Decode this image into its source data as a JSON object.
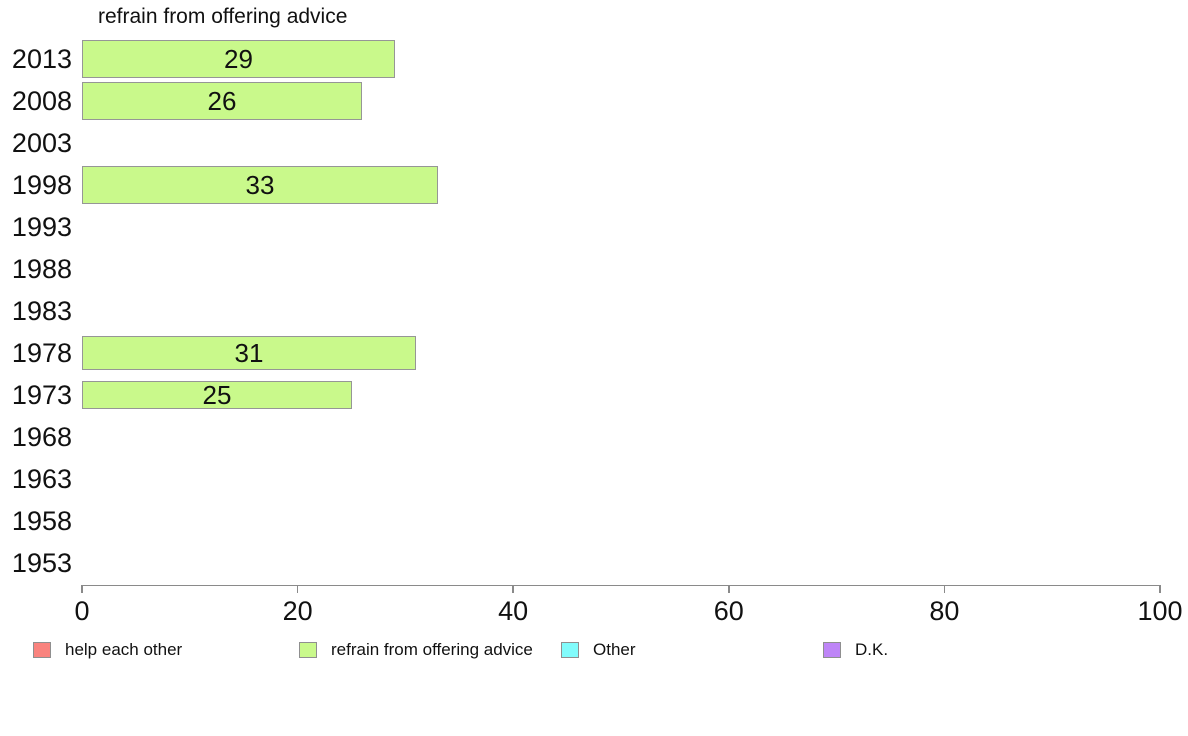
{
  "chart_data": {
    "type": "bar",
    "orientation": "horizontal",
    "title": "refrain from offering advice",
    "categories": [
      "2013",
      "2008",
      "2003",
      "1998",
      "1993",
      "1988",
      "1983",
      "1978",
      "1973",
      "1968",
      "1963",
      "1958",
      "1953"
    ],
    "series": [
      {
        "name": "help each other",
        "color": "#F9837E",
        "values": [
          null,
          null,
          null,
          null,
          null,
          null,
          null,
          null,
          null,
          null,
          null,
          null,
          null
        ]
      },
      {
        "name": "refrain from offering advice",
        "color": "#C9F98B",
        "values": [
          29,
          26,
          null,
          33,
          null,
          null,
          null,
          31,
          25,
          null,
          null,
          null,
          null
        ]
      },
      {
        "name": "Other",
        "color": "#81FCFC",
        "values": [
          null,
          null,
          null,
          null,
          null,
          null,
          null,
          null,
          null,
          null,
          null,
          null,
          null
        ]
      },
      {
        "name": "D.K.",
        "color": "#BE85F7",
        "values": [
          null,
          null,
          null,
          null,
          null,
          null,
          null,
          null,
          null,
          null,
          null,
          null,
          null
        ]
      }
    ],
    "xlim": [
      0,
      100
    ],
    "xticks": [
      0,
      20,
      40,
      60,
      80,
      100
    ],
    "bar_value_labels": true,
    "legend_position": "bottom",
    "grid": false
  },
  "colors": {
    "background": "#FFFFFF",
    "text": "#111111",
    "axis": "#8A8A8A",
    "bar_border": "#969696"
  }
}
